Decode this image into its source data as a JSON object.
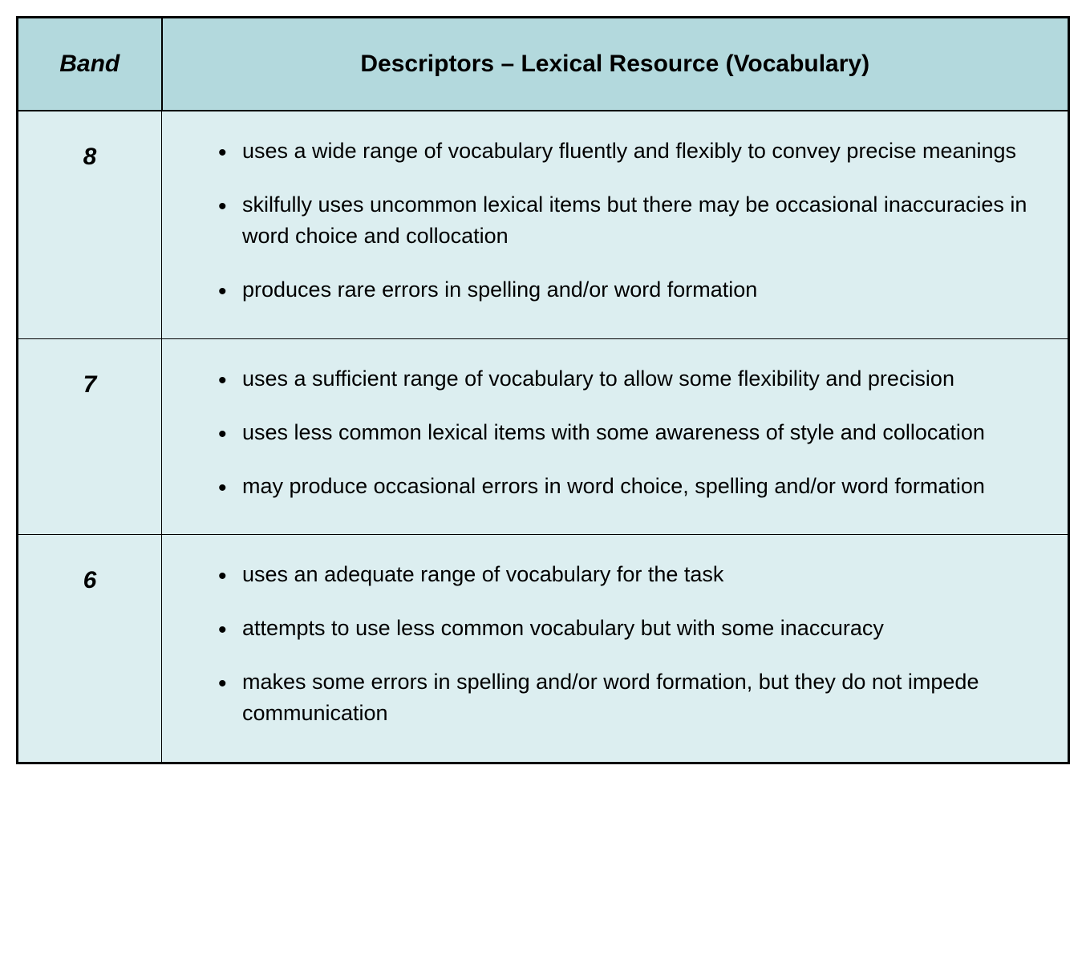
{
  "table": {
    "type": "table",
    "background_color_header": "#b3d9dd",
    "background_color_body": "#dceef0",
    "border_color": "#000000",
    "outer_border_width": 3,
    "inner_border_width": 1.5,
    "text_color": "#000000",
    "columns": [
      {
        "label": "Band",
        "width": 180,
        "font_size": 30,
        "font_weight": "bold",
        "font_style": "italic",
        "align": "center"
      },
      {
        "label": "Descriptors – Lexical Resource (Vocabulary)",
        "font_size": 30,
        "font_weight": "bold",
        "font_style": "normal",
        "align": "center"
      }
    ],
    "rows": [
      {
        "band": "8",
        "descriptors": [
          "uses a wide range of vocabulary fluently and flexibly to convey precise meanings",
          "skilfully uses uncommon lexical items but there may be occasional inaccuracies in word choice and collocation",
          "produces rare errors in spelling and/or word formation"
        ]
      },
      {
        "band": "7",
        "descriptors": [
          "uses a sufficient range of vocabulary to allow some flexibility and precision",
          "uses less common lexical items with some awareness of style and collocation",
          "may produce occasional errors in word choice, spelling and/or word formation"
        ]
      },
      {
        "band": "6",
        "descriptors": [
          "uses an adequate range of vocabulary for the task",
          "attempts to use less common vocabulary but with some inaccuracy",
          "makes some errors in spelling and/or word formation, but they do not impede communication"
        ]
      }
    ],
    "body_font_size": 27,
    "line_height": 1.45,
    "bullet_spacing": 28
  }
}
